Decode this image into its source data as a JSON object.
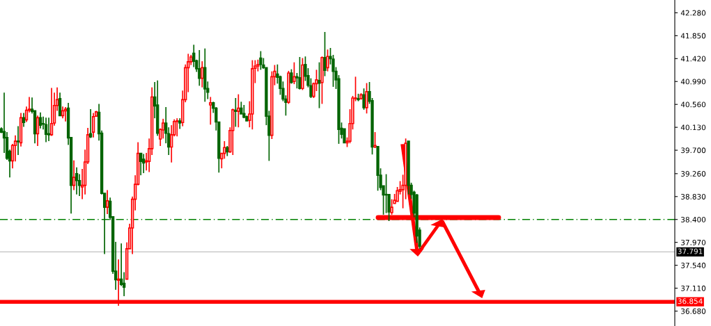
{
  "chart_data": {
    "type": "candlestick",
    "categories": [
      null,
      null,
      null,
      null,
      null,
      null,
      null,
      null,
      null,
      null,
      null,
      null,
      null,
      null,
      null,
      null,
      null,
      null,
      null,
      null,
      null,
      null,
      null,
      null,
      null,
      null,
      null,
      null,
      null,
      null,
      null,
      null,
      null,
      null,
      null,
      null,
      null,
      null,
      null,
      null,
      null,
      null,
      null,
      null,
      null,
      null,
      null,
      null,
      null,
      null,
      null,
      null,
      null,
      null,
      null,
      null,
      null,
      null,
      null,
      null,
      null,
      null,
      null,
      null,
      null,
      null,
      null,
      null,
      null,
      null,
      null,
      null,
      null,
      null,
      null,
      null,
      null,
      null,
      null,
      null,
      null,
      null,
      null,
      null,
      null,
      null,
      null,
      null,
      null,
      null,
      null,
      null,
      null,
      null,
      null,
      null,
      null,
      null,
      null,
      null,
      null,
      null,
      null,
      null,
      null,
      null,
      null,
      null,
      null,
      null,
      null,
      null,
      null,
      null,
      null,
      null,
      null,
      null,
      null,
      null,
      null,
      null,
      null,
      null,
      null,
      null,
      null,
      null,
      null,
      null,
      null,
      null,
      null,
      null,
      null,
      null,
      null,
      null,
      null,
      null,
      null,
      null,
      null,
      null,
      null,
      null,
      null,
      null,
      null,
      null,
      null,
      null,
      null,
      null,
      null,
      null,
      null,
      null,
      null,
      null,
      null,
      null,
      null,
      null,
      null,
      null,
      null,
      null,
      null,
      null,
      null,
      null,
      null,
      null,
      null,
      null,
      null,
      null,
      null,
      null,
      null,
      null,
      null,
      null,
      null,
      null,
      null,
      null,
      null,
      null,
      null,
      null,
      null,
      null,
      null,
      null,
      null,
      null,
      null,
      null,
      null,
      null,
      null,
      null,
      null,
      null,
      null,
      null,
      null,
      null,
      null,
      null,
      null,
      null,
      null,
      null,
      null,
      null,
      null,
      null,
      null,
      null,
      null,
      null,
      null,
      null,
      null,
      null,
      null,
      null,
      null,
      null,
      null,
      null,
      null,
      null,
      null,
      null,
      null,
      null,
      null,
      null
    ],
    "ohlc": [
      [
        40.1,
        40.13,
        40.02,
        40.04
      ],
      [
        40.05,
        40.78,
        39.65,
        39.93
      ],
      [
        39.94,
        40.04,
        39.52,
        39.55
      ],
      [
        39.68,
        39.71,
        39.19,
        39.5
      ],
      [
        39.5,
        39.82,
        39.36,
        39.79
      ],
      [
        39.79,
        39.98,
        39.49,
        39.87
      ],
      [
        39.87,
        40.15,
        39.61,
        39.86
      ],
      [
        39.84,
        40.4,
        39.77,
        40.31
      ],
      [
        40.31,
        40.4,
        40.14,
        40.22
      ],
      [
        40.27,
        40.52,
        40.23,
        40.45
      ],
      [
        40.45,
        40.7,
        40.41,
        40.47
      ],
      [
        40.47,
        40.69,
        40.39,
        40.43
      ],
      [
        40.44,
        40.45,
        39.83,
        40.01
      ],
      [
        40.01,
        40.35,
        39.78,
        40.31
      ],
      [
        40.31,
        40.41,
        40.11,
        40.17
      ],
      [
        40.2,
        40.33,
        40.09,
        40.19
      ],
      [
        40.18,
        40.31,
        39.85,
        40.0
      ],
      [
        40.01,
        40.31,
        39.87,
        39.99
      ],
      [
        39.99,
        40.87,
        39.97,
        40.2
      ],
      [
        40.21,
        40.78,
        40.16,
        40.54
      ],
      [
        40.54,
        40.88,
        40.44,
        40.65
      ],
      [
        40.67,
        40.78,
        40.34,
        40.35
      ],
      [
        40.35,
        40.52,
        40.3,
        40.44
      ],
      [
        40.44,
        40.51,
        40.24,
        40.47
      ],
      [
        40.49,
        40.59,
        39.8,
        39.93
      ],
      [
        39.94,
        39.95,
        38.51,
        39.04
      ],
      [
        39.04,
        39.51,
        38.95,
        39.19
      ],
      [
        39.26,
        39.38,
        38.87,
        39.13
      ],
      [
        39.13,
        39.25,
        38.84,
        39.04
      ],
      [
        39.01,
        39.35,
        38.78,
        39.04
      ],
      [
        39.04,
        39.71,
        38.87,
        39.48
      ],
      [
        39.48,
        40.12,
        39.44,
        39.99
      ],
      [
        40.01,
        40.47,
        39.93,
        39.95
      ],
      [
        40.04,
        40.4,
        39.94,
        40.33
      ],
      [
        40.34,
        40.44,
        40.34,
        40.42
      ],
      [
        40.41,
        40.57,
        39.88,
        40.01
      ],
      [
        40.02,
        40.07,
        38.87,
        38.89
      ],
      [
        38.89,
        38.9,
        37.75,
        38.63
      ],
      [
        38.63,
        38.95,
        38.5,
        38.75
      ],
      [
        38.74,
        38.81,
        38.39,
        38.44
      ],
      [
        38.45,
        38.46,
        37.38,
        37.43
      ],
      [
        37.43,
        37.98,
        37.08,
        37.27
      ],
      [
        37.26,
        37.65,
        36.78,
        37.28
      ],
      [
        37.28,
        37.95,
        37.15,
        37.18
      ],
      [
        37.2,
        37.41,
        36.96,
        37.13
      ],
      [
        37.28,
        37.97,
        37.27,
        37.85
      ],
      [
        37.85,
        38.32,
        37.84,
        38.24
      ],
      [
        38.24,
        38.83,
        37.75,
        38.78
      ],
      [
        38.78,
        39.23,
        38.57,
        39.06
      ],
      [
        39.06,
        39.85,
        39.04,
        39.64
      ],
      [
        39.64,
        39.65,
        39.23,
        39.49
      ],
      [
        39.53,
        39.63,
        39.27,
        39.46
      ],
      [
        39.48,
        39.65,
        39.32,
        39.5
      ],
      [
        39.49,
        39.92,
        39.29,
        39.73
      ],
      [
        39.73,
        40.88,
        39.61,
        40.7
      ],
      [
        40.7,
        40.98,
        40.3,
        40.53
      ],
      [
        40.55,
        41.01,
        39.97,
        40.02
      ],
      [
        39.91,
        40.11,
        39.78,
        40.09
      ],
      [
        40.08,
        40.29,
        39.92,
        40.21
      ],
      [
        40.21,
        40.51,
        39.83,
        40.02
      ],
      [
        40.01,
        40.13,
        39.61,
        39.76
      ],
      [
        39.76,
        40.17,
        39.47,
        39.99
      ],
      [
        39.99,
        40.28,
        39.96,
        40.24
      ],
      [
        40.24,
        40.3,
        39.96,
        40.25
      ],
      [
        40.25,
        40.3,
        40.1,
        40.21
      ],
      [
        40.22,
        40.82,
        40.15,
        40.65
      ],
      [
        40.65,
        41.31,
        40.6,
        41.25
      ],
      [
        41.25,
        41.51,
        40.79,
        41.36
      ],
      [
        41.36,
        41.49,
        41.3,
        41.45
      ],
      [
        41.52,
        41.68,
        41.26,
        41.37
      ],
      [
        41.38,
        41.4,
        41.17,
        41.23
      ],
      [
        41.23,
        41.58,
        40.91,
        41.05
      ],
      [
        41.05,
        41.37,
        40.88,
        41.25
      ],
      [
        41.25,
        41.61,
        40.61,
        40.85
      ],
      [
        40.86,
        40.99,
        40.66,
        40.79
      ],
      [
        40.55,
        40.7,
        40.18,
        40.59
      ],
      [
        40.59,
        40.61,
        40.4,
        40.49
      ],
      [
        40.49,
        40.51,
        40.07,
        40.23
      ],
      [
        40.23,
        40.24,
        39.28,
        39.55
      ],
      [
        39.54,
        39.64,
        39.36,
        39.64
      ],
      [
        39.64,
        39.87,
        39.54,
        39.75
      ],
      [
        39.75,
        39.78,
        39.59,
        39.67
      ],
      [
        39.67,
        40.13,
        39.65,
        40.07
      ],
      [
        40.07,
        40.48,
        39.61,
        40.46
      ],
      [
        40.45,
        40.68,
        40.14,
        40.43
      ],
      [
        40.43,
        40.75,
        40.13,
        40.49
      ],
      [
        40.49,
        40.61,
        40.37,
        40.38
      ],
      [
        40.39,
        40.55,
        40.3,
        40.32
      ],
      [
        40.33,
        40.35,
        40.24,
        40.25
      ],
      [
        40.26,
        40.62,
        40.13,
        40.38
      ],
      [
        40.38,
        41.39,
        40.09,
        41.23
      ],
      [
        41.24,
        41.39,
        40.96,
        41.28
      ],
      [
        41.28,
        41.4,
        41.18,
        41.31
      ],
      [
        41.43,
        41.56,
        41.21,
        41.31
      ],
      [
        41.3,
        41.43,
        41.23,
        41.25
      ],
      [
        41.25,
        41.26,
        40.17,
        40.34
      ],
      [
        40.34,
        40.44,
        39.5,
        39.98
      ],
      [
        39.98,
        41.18,
        39.91,
        41.08
      ],
      [
        41.08,
        41.3,
        40.92,
        41.18
      ],
      [
        41.13,
        41.31,
        40.95,
        41.07
      ],
      [
        41.08,
        41.1,
        40.74,
        40.86
      ],
      [
        40.86,
        40.99,
        40.62,
        40.66
      ],
      [
        40.66,
        40.73,
        40.35,
        40.6
      ],
      [
        40.6,
        41.19,
        40.57,
        41.15
      ],
      [
        41.15,
        41.22,
        40.95,
        40.97
      ],
      [
        40.99,
        41.35,
        40.94,
        41.08
      ],
      [
        41.08,
        41.15,
        40.86,
        41.06
      ],
      [
        41.06,
        41.45,
        40.84,
        40.86
      ],
      [
        40.86,
        41.43,
        40.83,
        41.3
      ],
      [
        41.31,
        41.46,
        41.0,
        41.09
      ],
      [
        41.1,
        41.24,
        40.88,
        40.92
      ],
      [
        40.91,
        41.05,
        40.68,
        40.71
      ],
      [
        40.71,
        40.97,
        40.68,
        40.95
      ],
      [
        40.95,
        41.21,
        40.81,
        41.02
      ],
      [
        41.01,
        41.35,
        40.49,
        40.96
      ],
      [
        40.97,
        41.46,
        40.57,
        41.44
      ],
      [
        41.44,
        41.92,
        41.09,
        41.2
      ],
      [
        41.25,
        41.59,
        41.18,
        41.46
      ],
      [
        41.46,
        41.62,
        41.31,
        41.42
      ],
      [
        41.41,
        41.49,
        40.89,
        41.18
      ],
      [
        41.18,
        41.26,
        40.85,
        41.02
      ],
      [
        41.04,
        41.11,
        39.82,
        40.09
      ],
      [
        40.11,
        40.22,
        39.92,
        40.0
      ],
      [
        40.1,
        40.11,
        39.83,
        39.84
      ],
      [
        39.84,
        39.94,
        39.76,
        39.87
      ],
      [
        39.87,
        40.47,
        39.83,
        40.2
      ],
      [
        40.2,
        40.72,
        40.09,
        40.68
      ],
      [
        40.67,
        41.08,
        40.62,
        40.68
      ],
      [
        40.67,
        40.76,
        40.62,
        40.65
      ],
      [
        40.67,
        40.77,
        40.65,
        40.74
      ],
      [
        40.74,
        40.86,
        40.46,
        40.5
      ],
      [
        40.5,
        40.96,
        40.39,
        40.8
      ],
      [
        40.8,
        40.98,
        40.57,
        40.62
      ],
      [
        40.63,
        40.68,
        39.62,
        39.76
      ],
      [
        39.76,
        40.04,
        39.74,
        39.79
      ],
      [
        39.77,
        39.78,
        38.94,
        39.23
      ],
      [
        39.23,
        39.36,
        38.95,
        39.0
      ],
      [
        39.03,
        39.04,
        38.49,
        38.86
      ],
      [
        38.87,
        39.25,
        38.52,
        38.86
      ],
      [
        38.87,
        38.88,
        38.37,
        38.54
      ],
      [
        38.53,
        38.78,
        38.49,
        38.63
      ],
      [
        38.7,
        38.88,
        38.69,
        38.76
      ],
      [
        38.74,
        39.01,
        38.73,
        38.94
      ],
      [
        38.93,
        39.12,
        38.87,
        38.96
      ],
      [
        38.96,
        39.24,
        38.61,
        39.04
      ],
      [
        39.04,
        39.92,
        38.78,
        39.83
      ],
      [
        39.87,
        39.87,
        38.87,
        39.04
      ],
      [
        39.04,
        39.09,
        38.79,
        38.87
      ],
      [
        38.91,
        38.94,
        38.44,
        38.52
      ],
      [
        38.86,
        38.88,
        37.96,
        38.09
      ],
      [
        38.2,
        38.25,
        37.85,
        37.9
      ],
      null,
      null,
      null,
      null,
      null,
      null,
      null,
      null,
      null,
      null,
      null,
      null,
      null,
      null,
      null,
      null,
      null,
      null,
      null,
      null,
      null,
      null,
      null,
      null,
      null,
      null,
      null,
      null,
      null,
      null,
      null,
      null,
      null,
      null,
      null,
      null,
      null,
      null,
      null,
      null,
      null,
      null,
      null,
      null,
      null,
      null,
      null,
      null,
      null,
      null,
      null,
      null,
      null,
      null,
      null,
      null,
      null,
      null,
      null,
      null,
      null,
      null,
      null,
      null,
      null,
      null,
      null,
      null,
      null,
      null,
      null,
      null,
      null,
      null,
      null,
      null,
      null,
      null,
      null,
      null,
      null,
      null,
      null,
      null,
      null,
      null,
      null,
      null,
      null,
      null,
      null
    ],
    "ylim": [
      36.4,
      42.52
    ],
    "yticks": [
      {
        "value": 42.28,
        "label": "42.280"
      },
      {
        "value": 41.85,
        "label": "41.850"
      },
      {
        "value": 41.42,
        "label": "41.420"
      },
      {
        "value": 40.99,
        "label": "40.990"
      },
      {
        "value": 40.56,
        "label": "40.560"
      },
      {
        "value": 40.13,
        "label": "40.130"
      },
      {
        "value": 39.7,
        "label": "39.700"
      },
      {
        "value": 39.26,
        "label": "39.260"
      },
      {
        "value": 38.83,
        "label": "38.830"
      },
      {
        "value": 38.4,
        "label": "38.400"
      },
      {
        "value": 37.97,
        "label": "37.970"
      },
      {
        "value": 37.54,
        "label": "37.540"
      },
      {
        "value": 37.11,
        "label": "37.110"
      },
      {
        "value": 36.68,
        "label": "36.680"
      }
    ],
    "ref_lines": [
      {
        "axis": "y",
        "value": 38.4,
        "label": null,
        "color": "#008000",
        "line_style": "dashed"
      },
      {
        "axis": "y",
        "value": 37.791,
        "label": "37.791",
        "color": "#c0c0c0",
        "line_style": "solid"
      },
      {
        "axis": "y",
        "value": 36.854,
        "label": "36.854",
        "color": "#ff0000",
        "line_style": "solid"
      }
    ],
    "tick_labels": "y",
    "grid": false,
    "legend": false
  }
}
